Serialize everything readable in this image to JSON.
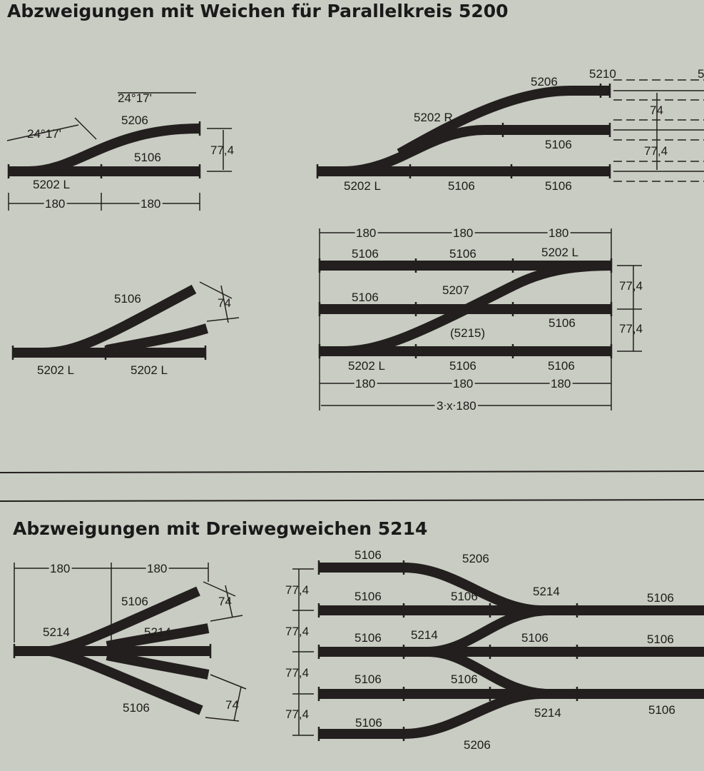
{
  "section1": {
    "title": "Abzweigungen mit Weichen für Parallelkreis 5200"
  },
  "section2": {
    "title": "Abzweigungen mit Dreiwegweichen 5214"
  },
  "d1": {
    "angle_top": "24°17'",
    "angle_left": "24°17'",
    "curve": "5206",
    "straight": "5106",
    "offset": "77,4",
    "switch": "5202 L",
    "len1": "180",
    "len2": "180"
  },
  "d2": {
    "top_right": "5210",
    "curve": "5206",
    "switch_r": "5202 R",
    "mid": "5106",
    "switch_l": "5202 L",
    "bot1": "5106",
    "bot2": "5106",
    "spacing1": "74",
    "spacing2": "77,4",
    "cut": "5"
  },
  "d3": {
    "branch": "5106",
    "spacing": "74",
    "switch1": "5202 L",
    "switch2": "5202 L"
  },
  "d4": {
    "len1": "180",
    "len2": "180",
    "len3": "180",
    "top1": "5106",
    "top2": "5106",
    "top3": "5202 L",
    "mid1": "5106",
    "cross": "5207",
    "mid3": "5106",
    "sub": "(5215)",
    "bot1": "5202 L",
    "bot2": "5106",
    "bot3": "5106",
    "blen1": "180",
    "blen2": "180",
    "blen3": "180",
    "total": "3 x 180",
    "sp1": "77,4",
    "sp2": "77,4"
  },
  "d5": {
    "len1": "180",
    "len2": "180",
    "branch": "5106",
    "spacing1": "74",
    "switch1": "5214",
    "switch2": "5214",
    "lower": "5106",
    "spacing2": "74"
  },
  "d6": {
    "r1a": "5106",
    "r1b": "5206",
    "r2a": "5106",
    "r2b": "5106",
    "sw1": "5214",
    "r2c": "5106",
    "r3a": "5106",
    "sw2": "5214",
    "r3b": "5106",
    "r3c": "5106",
    "r4a": "5106",
    "r4b": "5106",
    "sw3": "5214",
    "r4c": "5106",
    "r5a": "5106",
    "r5b": "5206",
    "sp": [
      "77,4",
      "77,4",
      "77,4",
      "77,4"
    ]
  }
}
